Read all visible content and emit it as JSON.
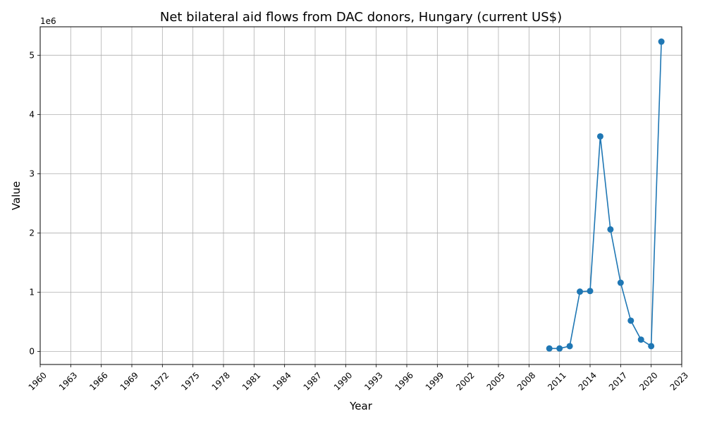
{
  "chart_data": {
    "type": "line",
    "title": "Net bilateral aid flows from DAC donors, Hungary (current US$)",
    "xlabel": "Year",
    "ylabel": "Value",
    "y_offset_label": "1e6",
    "y_scale_factor": 1000000,
    "xlim": [
      1960,
      2023
    ],
    "ylim": [
      -220000,
      5480000
    ],
    "x_ticks": [
      1960,
      1963,
      1966,
      1969,
      1972,
      1975,
      1978,
      1981,
      1984,
      1987,
      1990,
      1993,
      1996,
      1999,
      2002,
      2005,
      2008,
      2011,
      2014,
      2017,
      2020,
      2023
    ],
    "y_ticks": [
      0,
      1000000,
      2000000,
      3000000,
      4000000,
      5000000
    ],
    "grid": true,
    "series": [
      {
        "x": [
          2010,
          2011,
          2012,
          2013,
          2014,
          2015,
          2016,
          2017,
          2018,
          2019,
          2020,
          2021
        ],
        "values": [
          50000,
          50000,
          90000,
          1010000,
          1020000,
          3630000,
          2060000,
          1160000,
          520000,
          200000,
          90000,
          5230000
        ],
        "color": "#1f77b4",
        "marker": "circle"
      }
    ]
  }
}
